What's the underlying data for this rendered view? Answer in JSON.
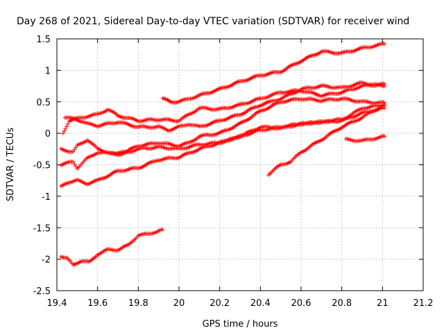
{
  "chart_data": {
    "type": "scatter",
    "title": "Day 268 of 2021, Sidereal Day-to-day VTEC variation (SDTVAR) for receiver wind",
    "xlabel": "GPS time / hours",
    "ylabel": "SDTVAR / TECUs",
    "xlim": [
      19.4,
      21.2
    ],
    "ylim": [
      -2.5,
      1.5
    ],
    "xticks": [
      "19.4",
      "19.6",
      "19.8",
      "20",
      "20.2",
      "20.4",
      "20.6",
      "20.8",
      "21",
      "21.2"
    ],
    "yticks": [
      "1.5",
      "1",
      "0.5",
      "0",
      "-0.5",
      "-1",
      "-1.5",
      "-2",
      "-2.5"
    ],
    "grid": true,
    "marker": "+",
    "color": "#ff0000",
    "series": [
      {
        "name": "s1",
        "points": [
          [
            19.92,
            0.55
          ],
          [
            19.96,
            0.5
          ],
          [
            20.0,
            0.5
          ],
          [
            20.05,
            0.55
          ],
          [
            20.1,
            0.6
          ],
          [
            20.2,
            0.7
          ],
          [
            20.3,
            0.82
          ],
          [
            20.4,
            0.92
          ],
          [
            20.5,
            0.98
          ],
          [
            20.6,
            1.15
          ],
          [
            20.7,
            1.3
          ],
          [
            20.8,
            1.27
          ],
          [
            20.9,
            1.35
          ],
          [
            21.01,
            1.42
          ]
        ]
      },
      {
        "name": "s2",
        "points": [
          [
            19.43,
            0.0
          ],
          [
            19.46,
            0.2
          ],
          [
            19.52,
            0.25
          ],
          [
            19.6,
            0.3
          ],
          [
            19.65,
            0.38
          ],
          [
            19.7,
            0.28
          ],
          [
            19.8,
            0.2
          ],
          [
            19.9,
            0.22
          ],
          [
            20.0,
            0.2
          ],
          [
            20.05,
            0.3
          ],
          [
            20.1,
            0.4
          ],
          [
            20.2,
            0.38
          ],
          [
            20.3,
            0.45
          ],
          [
            20.4,
            0.55
          ],
          [
            20.45,
            0.6
          ],
          [
            20.5,
            0.65
          ],
          [
            20.6,
            0.68
          ],
          [
            20.7,
            0.6
          ],
          [
            20.8,
            0.65
          ],
          [
            20.9,
            0.75
          ],
          [
            21.01,
            0.78
          ]
        ]
      },
      {
        "name": "s3",
        "points": [
          [
            19.44,
            0.25
          ],
          [
            19.5,
            0.22
          ],
          [
            19.55,
            0.15
          ],
          [
            19.6,
            0.12
          ],
          [
            19.7,
            0.18
          ],
          [
            19.8,
            0.1
          ],
          [
            19.9,
            0.1
          ],
          [
            19.95,
            0.05
          ],
          [
            20.0,
            0.1
          ],
          [
            20.05,
            0.15
          ],
          [
            20.1,
            0.1
          ],
          [
            20.2,
            0.2
          ],
          [
            20.3,
            0.3
          ],
          [
            20.4,
            0.45
          ],
          [
            20.5,
            0.55
          ],
          [
            20.55,
            0.62
          ],
          [
            20.6,
            0.7
          ],
          [
            20.7,
            0.75
          ],
          [
            20.8,
            0.72
          ],
          [
            20.9,
            0.8
          ],
          [
            21.01,
            0.75
          ]
        ]
      },
      {
        "name": "s4",
        "points": [
          [
            19.42,
            -0.25
          ],
          [
            19.48,
            -0.3
          ],
          [
            19.5,
            -0.2
          ],
          [
            19.55,
            -0.1
          ],
          [
            19.6,
            -0.25
          ],
          [
            19.65,
            -0.3
          ],
          [
            19.7,
            -0.35
          ],
          [
            19.8,
            -0.2
          ],
          [
            19.9,
            -0.15
          ],
          [
            20.0,
            -0.2
          ],
          [
            20.05,
            -0.15
          ],
          [
            20.1,
            -0.05
          ],
          [
            20.2,
            0.0
          ],
          [
            20.3,
            0.15
          ],
          [
            20.4,
            0.35
          ],
          [
            20.5,
            0.5
          ],
          [
            20.6,
            0.55
          ],
          [
            20.7,
            0.52
          ],
          [
            20.8,
            0.55
          ],
          [
            20.9,
            0.5
          ],
          [
            21.01,
            0.48
          ]
        ]
      },
      {
        "name": "s5",
        "points": [
          [
            19.42,
            -0.5
          ],
          [
            19.48,
            -0.45
          ],
          [
            19.5,
            -0.55
          ],
          [
            19.55,
            -0.4
          ],
          [
            19.6,
            -0.3
          ],
          [
            19.65,
            -0.32
          ],
          [
            19.75,
            -0.3
          ],
          [
            19.8,
            -0.25
          ],
          [
            19.9,
            -0.22
          ],
          [
            20.0,
            -0.25
          ],
          [
            20.1,
            -0.18
          ],
          [
            20.2,
            -0.15
          ],
          [
            20.3,
            -0.05
          ],
          [
            20.4,
            0.1
          ],
          [
            20.5,
            0.08
          ],
          [
            20.6,
            0.15
          ],
          [
            20.7,
            0.18
          ],
          [
            20.8,
            0.22
          ],
          [
            20.85,
            0.3
          ],
          [
            20.9,
            0.4
          ],
          [
            21.01,
            0.45
          ]
        ]
      },
      {
        "name": "s6",
        "points": [
          [
            19.42,
            -0.85
          ],
          [
            19.45,
            -0.78
          ],
          [
            19.5,
            -0.75
          ],
          [
            19.55,
            -0.8
          ],
          [
            19.6,
            -0.75
          ],
          [
            19.7,
            -0.6
          ],
          [
            19.8,
            -0.55
          ],
          [
            19.9,
            -0.42
          ],
          [
            20.0,
            -0.38
          ],
          [
            20.1,
            -0.25
          ],
          [
            20.2,
            -0.15
          ],
          [
            20.3,
            -0.05
          ],
          [
            20.4,
            0.05
          ],
          [
            20.5,
            0.1
          ],
          [
            20.6,
            0.15
          ],
          [
            20.7,
            0.18
          ],
          [
            20.8,
            0.2
          ],
          [
            20.9,
            0.32
          ],
          [
            21.01,
            0.4
          ]
        ]
      },
      {
        "name": "s7",
        "points": [
          [
            20.44,
            -0.65
          ],
          [
            20.5,
            -0.5
          ],
          [
            20.55,
            -0.45
          ],
          [
            20.6,
            -0.3
          ],
          [
            20.7,
            -0.1
          ],
          [
            20.8,
            0.1
          ],
          [
            20.9,
            0.25
          ],
          [
            20.95,
            0.35
          ],
          [
            21.01,
            0.45
          ]
        ]
      },
      {
        "name": "s8",
        "points": [
          [
            20.82,
            -0.1
          ],
          [
            20.9,
            -0.12
          ],
          [
            21.01,
            -0.05
          ]
        ]
      },
      {
        "name": "s9",
        "points": [
          [
            19.42,
            -1.95
          ],
          [
            19.45,
            -1.98
          ],
          [
            19.48,
            -2.1
          ],
          [
            19.52,
            -2.02
          ],
          [
            19.56,
            -2.05
          ],
          [
            19.6,
            -1.92
          ],
          [
            19.65,
            -1.85
          ],
          [
            19.7,
            -1.85
          ],
          [
            19.75,
            -1.78
          ],
          [
            19.8,
            -1.62
          ],
          [
            19.85,
            -1.6
          ],
          [
            19.9,
            -1.55
          ],
          [
            19.92,
            -1.53
          ]
        ]
      }
    ]
  }
}
